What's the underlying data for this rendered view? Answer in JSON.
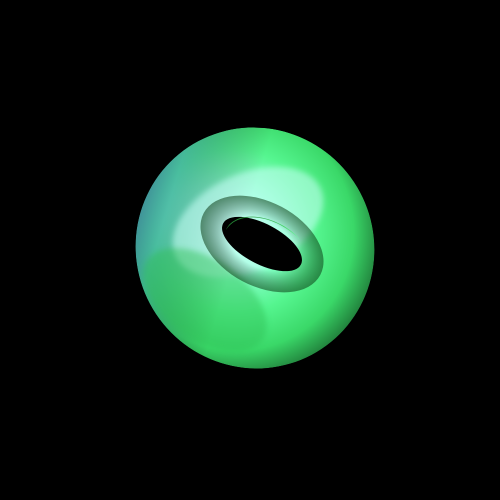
{
  "scene": {
    "background_color": "#000000",
    "object": "torus",
    "colors": {
      "highlight": "#b8fff0",
      "mid": "#6dffb0",
      "base": "#3ef07a",
      "shadow": "#2a9e4a",
      "rim_blue": "#3a2a9a",
      "hole": "#000000"
    }
  }
}
